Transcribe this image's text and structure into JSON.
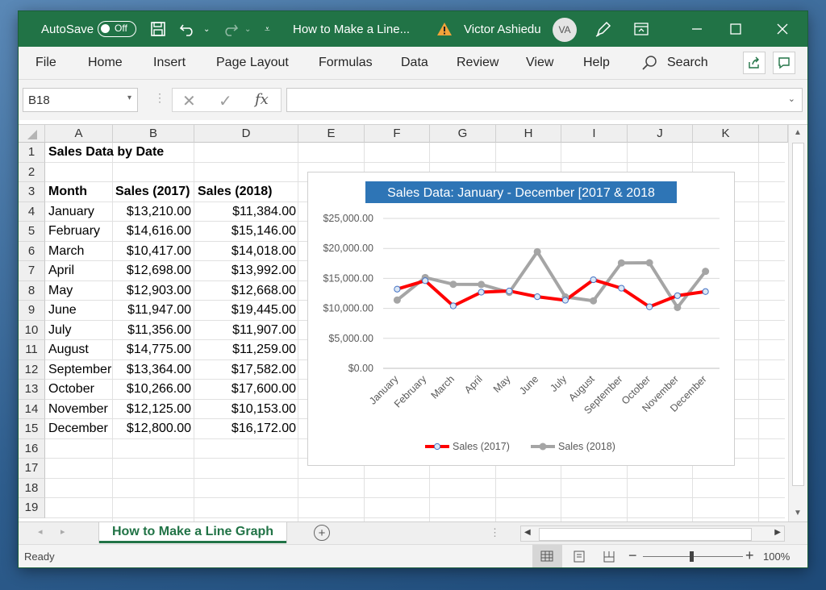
{
  "titlebar": {
    "autosave_label": "AutoSave",
    "autosave_state": "Off",
    "doc_title": "How to Make a Line...",
    "user_name": "Victor Ashiedu",
    "user_initials": "VA"
  },
  "menu": {
    "items": [
      "File",
      "Home",
      "Insert",
      "Page Layout",
      "Formulas",
      "Data",
      "Review",
      "View",
      "Help"
    ],
    "search_label": "Search"
  },
  "formula_bar": {
    "name_box": "B18",
    "fx": "fx",
    "content": ""
  },
  "columns": [
    "A",
    "B",
    "D",
    "E",
    "F",
    "G",
    "H",
    "I",
    "J",
    "K"
  ],
  "rows": [
    "1",
    "2",
    "3",
    "4",
    "5",
    "6",
    "7",
    "8",
    "9",
    "10",
    "11",
    "12",
    "13",
    "14",
    "15",
    "16",
    "17",
    "18",
    "19"
  ],
  "sheet": {
    "title": "Sales Data by Date",
    "headers": [
      "Month",
      "Sales (2017)",
      "Sales (2018)"
    ],
    "data": [
      [
        "January",
        "$13,210.00",
        "$11,384.00"
      ],
      [
        "February",
        "$14,616.00",
        "$15,146.00"
      ],
      [
        "March",
        "$10,417.00",
        "$14,018.00"
      ],
      [
        "April",
        "$12,698.00",
        "$13,992.00"
      ],
      [
        "May",
        "$12,903.00",
        "$12,668.00"
      ],
      [
        "June",
        "$11,947.00",
        "$19,445.00"
      ],
      [
        "July",
        "$11,356.00",
        "$11,907.00"
      ],
      [
        "August",
        "$14,775.00",
        "$11,259.00"
      ],
      [
        "September",
        "$13,364.00",
        "$17,582.00"
      ],
      [
        "October",
        "$10,266.00",
        "$17,600.00"
      ],
      [
        "November",
        "$12,125.00",
        "$10,153.00"
      ],
      [
        "December",
        "$12,800.00",
        "$16,172.00"
      ]
    ]
  },
  "chart_data": {
    "type": "line",
    "title": "Sales Data: January - December [2017 & 2018",
    "categories": [
      "January",
      "February",
      "March",
      "April",
      "May",
      "June",
      "July",
      "August",
      "September",
      "October",
      "November",
      "December"
    ],
    "series": [
      {
        "name": "Sales (2017)",
        "color": "#ff0000",
        "values": [
          13210,
          14616,
          10417,
          12698,
          12903,
          11947,
          11356,
          14775,
          13364,
          10266,
          12125,
          12800
        ]
      },
      {
        "name": "Sales (2018)",
        "color": "#a5a5a5",
        "values": [
          11384,
          15146,
          14018,
          13992,
          12668,
          19445,
          11907,
          11259,
          17582,
          17600,
          10153,
          16172
        ]
      }
    ],
    "ylim": [
      0,
      25000
    ],
    "ytick_values": [
      0,
      5000,
      10000,
      15000,
      20000,
      25000
    ],
    "ytick_labels": [
      "$0.00",
      "$5,000.00",
      "$10,000.00",
      "$15,000.00",
      "$20,000.00",
      "$25,000.00"
    ],
    "legend_position": "bottom",
    "grid": true
  },
  "sheet_tab": "How to Make a Line Graph",
  "status": {
    "ready": "Ready",
    "zoom": "100%"
  },
  "colors": {
    "excel_green": "#217346",
    "title_fill": "#2e75b6"
  }
}
